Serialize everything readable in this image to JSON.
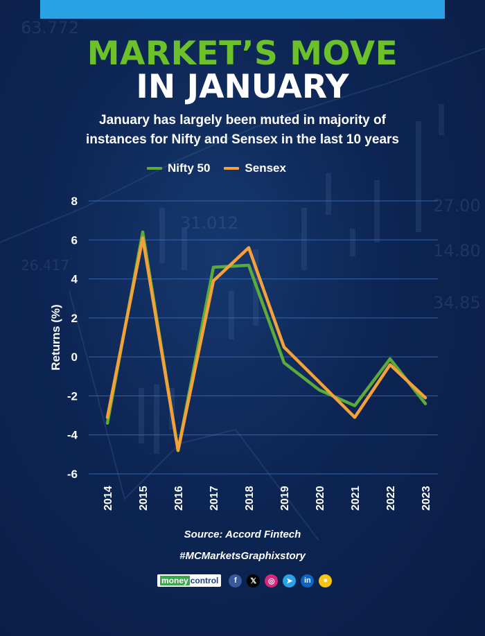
{
  "header": {
    "title_line1": "MARKET’S MOVE",
    "title_line2": "IN JANUARY",
    "subtitle_line1": "January has largely been muted in majority of",
    "subtitle_line2": "instances for Nifty and Sensex in the last 10 years"
  },
  "colors": {
    "nifty": "#5aaa3c",
    "sensex": "#f5a13a",
    "title_green": "#6cc12b",
    "top_bar": "#2aa3e6"
  },
  "chart_data": {
    "type": "line",
    "title": "Market's move in January",
    "xlabel": "",
    "ylabel": "Returns (%)",
    "categories": [
      "2014",
      "2015",
      "2016",
      "2017",
      "2018",
      "2019",
      "2020",
      "2021",
      "2022",
      "2023"
    ],
    "series": [
      {
        "name": "Nifty 50",
        "values": [
          -3.4,
          6.4,
          -4.8,
          4.6,
          4.7,
          -0.3,
          -1.7,
          -2.5,
          -0.1,
          -2.4
        ]
      },
      {
        "name": "Sensex",
        "values": [
          -3.1,
          6.1,
          -4.8,
          3.9,
          5.6,
          0.5,
          -1.3,
          -3.1,
          -0.4,
          -2.1
        ]
      }
    ],
    "ylim": [
      -6,
      8
    ],
    "yticks": [
      "8",
      "6",
      "4",
      "2",
      "0",
      "-2",
      "-4",
      "-6"
    ],
    "grid": true,
    "legend_position": "top"
  },
  "footer": {
    "source": "Source: Accord Fintech",
    "hashtag": "#MCMarketsGraphixstory",
    "brand_money": "money",
    "brand_control": "control",
    "social_icons": [
      {
        "name": "facebook-icon",
        "glyph": "f",
        "color": "#3b5998"
      },
      {
        "name": "x-icon",
        "glyph": "𝕏",
        "color": "#000000"
      },
      {
        "name": "instagram-icon",
        "glyph": "◎",
        "color": "#d6297b"
      },
      {
        "name": "telegram-icon",
        "glyph": "➤",
        "color": "#2aa3e6"
      },
      {
        "name": "linkedin-icon",
        "glyph": "in",
        "color": "#0a66c2"
      },
      {
        "name": "koo-icon",
        "glyph": "●",
        "color": "#f5c518"
      }
    ]
  }
}
